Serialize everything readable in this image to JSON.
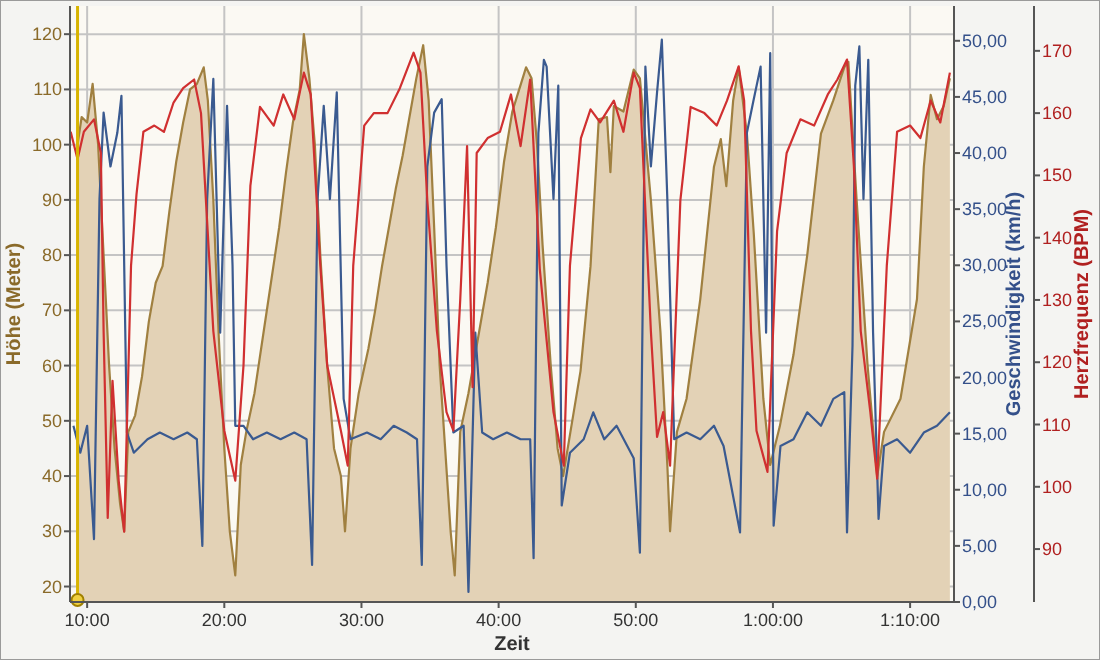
{
  "chart_data": {
    "type": "area",
    "xlabel": "Zeit",
    "ylabel": "Höhe (Meter)",
    "y2label": "Geschwindigkeit (km/h)",
    "y3label": "Herzfrequenz (BPM)",
    "xlim": [
      8.75,
      73.2
    ],
    "ylim": [
      17.2,
      125.1
    ],
    "y2lim": [
      0,
      53.1
    ],
    "y3lim": [
      81.5,
      177.2
    ],
    "xticks": [
      {
        "value": 10,
        "label": "10:00"
      },
      {
        "value": 20,
        "label": "20:00"
      },
      {
        "value": 30,
        "label": "30:00"
      },
      {
        "value": 40,
        "label": "40:00"
      },
      {
        "value": 50,
        "label": "50:00"
      },
      {
        "value": 60,
        "label": "1:00:00"
      },
      {
        "value": 70,
        "label": "1:10:00"
      }
    ],
    "yticks": [
      20,
      30,
      40,
      50,
      60,
      70,
      80,
      90,
      100,
      110,
      120
    ],
    "y2ticks": [
      {
        "value": 0,
        "label": "0,00"
      },
      {
        "value": 5,
        "label": "5,00"
      },
      {
        "value": 10,
        "label": "10,00"
      },
      {
        "value": 15,
        "label": "15,00"
      },
      {
        "value": 20,
        "label": "20,00"
      },
      {
        "value": 25,
        "label": "25,00"
      },
      {
        "value": 30,
        "label": "30,00"
      },
      {
        "value": 35,
        "label": "35,00"
      },
      {
        "value": 40,
        "label": "40,00"
      },
      {
        "value": 45,
        "label": "45,00"
      },
      {
        "value": 50,
        "label": "50,00"
      }
    ],
    "y3ticks": [
      90,
      100,
      110,
      120,
      130,
      140,
      150,
      160,
      170
    ],
    "grid": true,
    "ref_lines": [
      {
        "axis": "x",
        "value": 9.3,
        "color": "#d8b400"
      }
    ],
    "series": [
      {
        "axis": "y",
        "color": "#a08040",
        "x": [
          9.3,
          9.6,
          10.0,
          10.4,
          10.8,
          11.2,
          11.6,
          12.0,
          12.4,
          12.7,
          13.0,
          13.5,
          14.0,
          14.5,
          15.0,
          15.5,
          16.0,
          16.5,
          17.0,
          17.5,
          18.0,
          18.5,
          18.8,
          19.2,
          19.6,
          20.0,
          20.4,
          20.8,
          21.2,
          21.6,
          22.2,
          22.8,
          23.4,
          24.0,
          24.5,
          25.0,
          25.5,
          25.8,
          26.2,
          26.6,
          27.0,
          27.5,
          28.0,
          28.5,
          28.8,
          29.2,
          29.8,
          30.5,
          31.0,
          31.5,
          32.0,
          32.5,
          33.0,
          33.5,
          34.0,
          34.5,
          34.9,
          35.3,
          35.7,
          36.1,
          36.5,
          36.8,
          37.2,
          37.8,
          38.5,
          39.2,
          39.8,
          40.4,
          41.0,
          41.5,
          42.0,
          42.4,
          42.8,
          43.2,
          43.8,
          44.3,
          44.7,
          45.97,
          46.7,
          47.3,
          47.9,
          48.15,
          48.4,
          49.1,
          49.85,
          50.3,
          51.1,
          51.8,
          52.3,
          52.5,
          53.0,
          53.7,
          54.7,
          55.7,
          56.2,
          56.6,
          57.1,
          57.5,
          58.1,
          58.6,
          59.3,
          59.8,
          60.5,
          61.5,
          62.5,
          63.5,
          64.4,
          65.2,
          65.5,
          66.1,
          66.9,
          67.6,
          68.1,
          69.3,
          70.5,
          71.0,
          71.5,
          71.96,
          72.45,
          72.9
        ],
        "values": [
          100,
          105,
          104,
          111,
          100,
          80,
          60,
          45,
          35,
          30,
          48,
          51,
          58,
          68,
          75,
          78,
          88,
          97,
          104,
          110,
          111,
          114,
          108,
          90,
          65,
          45,
          30,
          22,
          42,
          48,
          55,
          65,
          75,
          85,
          95,
          104,
          110,
          120,
          112,
          100,
          80,
          60,
          45,
          40,
          30,
          45,
          55,
          63,
          70,
          78,
          85,
          92,
          98,
          105,
          112,
          118,
          108,
          85,
          60,
          45,
          30,
          22,
          48,
          55,
          65,
          75,
          85,
          97,
          106,
          110,
          114,
          112,
          100,
          82,
          60,
          45,
          40,
          59,
          78,
          104.6,
          105,
          95,
          107,
          106,
          113.6,
          112,
          90,
          66,
          42,
          30,
          48,
          54,
          72,
          96,
          101,
          92.5,
          108,
          114,
          102,
          84,
          54,
          42,
          49,
          62,
          80,
          102,
          108,
          114,
          115,
          90,
          60,
          40,
          48,
          54,
          72,
          96,
          109,
          104.6,
          107,
          112
        ]
      },
      {
        "type": "line",
        "axis": "y2",
        "color": "#3a5a90",
        "x": [
          9.0,
          9.5,
          10.0,
          10.5,
          10.9,
          11.2,
          11.7,
          12.2,
          12.5,
          12.9,
          13.4,
          14.4,
          15.3,
          16.3,
          17.3,
          18.0,
          18.4,
          18.75,
          19.2,
          19.7,
          20.2,
          20.6,
          20.8,
          21.4,
          22.1,
          23.1,
          24.1,
          25.1,
          26.0,
          26.4,
          26.8,
          27.25,
          27.7,
          28.2,
          28.7,
          29.2,
          30.4,
          31.4,
          32.35,
          33.3,
          34.05,
          34.4,
          34.8,
          35.3,
          35.85,
          36.2,
          36.7,
          37.45,
          37.8,
          38.3,
          38.8,
          39.6,
          40.6,
          41.6,
          42.3,
          42.55,
          42.9,
          43.3,
          43.5,
          44.0,
          44.35,
          44.6,
          45.2,
          46.2,
          46.9,
          47.7,
          48.6,
          49.85,
          50.3,
          50.7,
          51.1,
          51.55,
          51.9,
          52.3,
          52.8,
          53.7,
          54.7,
          55.7,
          56.4,
          57.6,
          58.1,
          58.6,
          59.1,
          59.5,
          59.8,
          60.05,
          60.55,
          61.5,
          62.5,
          63.5,
          64.4,
          65.2,
          65.4,
          65.8,
          66.0,
          66.3,
          66.6,
          66.95,
          67.3,
          67.7,
          68.1,
          69.05,
          70.0,
          71.0,
          71.96,
          72.9
        ],
        "values": [
          15.7,
          13.3,
          15.7,
          5.6,
          35.9,
          43.6,
          38.8,
          41.8,
          45.1,
          15.1,
          13.3,
          14.5,
          15.1,
          14.5,
          15.1,
          14.5,
          5.0,
          35.9,
          46.6,
          24.0,
          44.2,
          30.0,
          15.7,
          15.7,
          14.5,
          15.1,
          14.5,
          15.1,
          14.5,
          3.3,
          35.9,
          44.2,
          35.9,
          45.4,
          18.1,
          14.5,
          15.1,
          14.5,
          15.7,
          15.1,
          14.5,
          3.3,
          38.8,
          43.6,
          44.8,
          30.0,
          15.1,
          15.7,
          0.9,
          24.0,
          15.1,
          14.5,
          15.1,
          14.5,
          14.5,
          3.9,
          41.8,
          48.3,
          47.7,
          35.9,
          46.0,
          8.6,
          13.3,
          14.5,
          16.9,
          14.5,
          15.7,
          12.8,
          4.4,
          47.7,
          38.8,
          45.4,
          50.1,
          35.9,
          14.5,
          15.1,
          14.5,
          15.7,
          13.9,
          6.2,
          41.8,
          44.8,
          47.7,
          24.0,
          48.9,
          6.8,
          13.9,
          14.5,
          16.9,
          15.7,
          18.1,
          18.7,
          6.2,
          22.8,
          46.0,
          49.5,
          35.9,
          48.3,
          24.0,
          7.4,
          13.9,
          14.5,
          13.3,
          15.1,
          15.7,
          16.9
        ]
      },
      {
        "type": "line",
        "axis": "y3",
        "color": "#d03030",
        "x": [
          8.8,
          9.3,
          9.76,
          10.5,
          11.0,
          11.2,
          11.5,
          11.85,
          12.3,
          12.7,
          13.2,
          13.6,
          14.1,
          14.9,
          15.6,
          16.3,
          17.0,
          17.8,
          18.3,
          19.2,
          20.0,
          20.8,
          21.4,
          21.9,
          22.6,
          23.6,
          24.3,
          25.1,
          25.8,
          26.3,
          27.0,
          27.5,
          28.5,
          29.0,
          29.4,
          30.2,
          30.9,
          31.9,
          32.8,
          33.8,
          34.3,
          34.8,
          35.5,
          36.2,
          36.7,
          37.2,
          37.7,
          38.1,
          38.4,
          39.2,
          40.1,
          40.9,
          41.6,
          42.3,
          43.0,
          44.0,
          44.75,
          45.2,
          46.0,
          46.7,
          47.4,
          48.4,
          49.1,
          49.85,
          50.3,
          51.1,
          51.55,
          52.0,
          52.5,
          53.25,
          54.0,
          55.0,
          55.9,
          56.65,
          57.5,
          57.9,
          58.4,
          58.8,
          59.6,
          60.3,
          61.0,
          62.0,
          63.0,
          64.0,
          64.7,
          65.4,
          65.9,
          66.4,
          67.1,
          67.6,
          68.3,
          69.05,
          70.0,
          70.75,
          71.5,
          72.2,
          72.9
        ],
        "values": [
          157,
          152.6,
          157,
          159,
          153.6,
          125,
          95,
          117,
          101,
          92.8,
          135.5,
          147,
          157,
          158,
          157,
          161.7,
          164,
          165.4,
          160,
          125,
          109,
          101,
          119.5,
          148.3,
          161,
          158,
          163,
          159,
          166.5,
          163,
          135.5,
          119.5,
          109,
          103.4,
          135.5,
          158,
          160,
          160,
          164,
          169.7,
          166.5,
          146,
          125,
          112,
          109,
          130,
          154.7,
          116,
          153.6,
          156,
          157,
          163,
          154.7,
          165.4,
          135,
          112,
          103.4,
          135.5,
          156,
          160.6,
          158.5,
          162,
          157,
          166.5,
          164,
          125,
          108,
          112,
          103.4,
          146,
          161,
          160,
          158,
          162,
          167.5,
          162,
          125,
          109,
          102.4,
          141,
          153.6,
          159,
          158,
          163,
          165.4,
          168.6,
          151.5,
          125,
          112,
          101.3,
          135.5,
          157,
          158,
          156,
          162,
          158.5,
          166.5
        ]
      }
    ]
  }
}
